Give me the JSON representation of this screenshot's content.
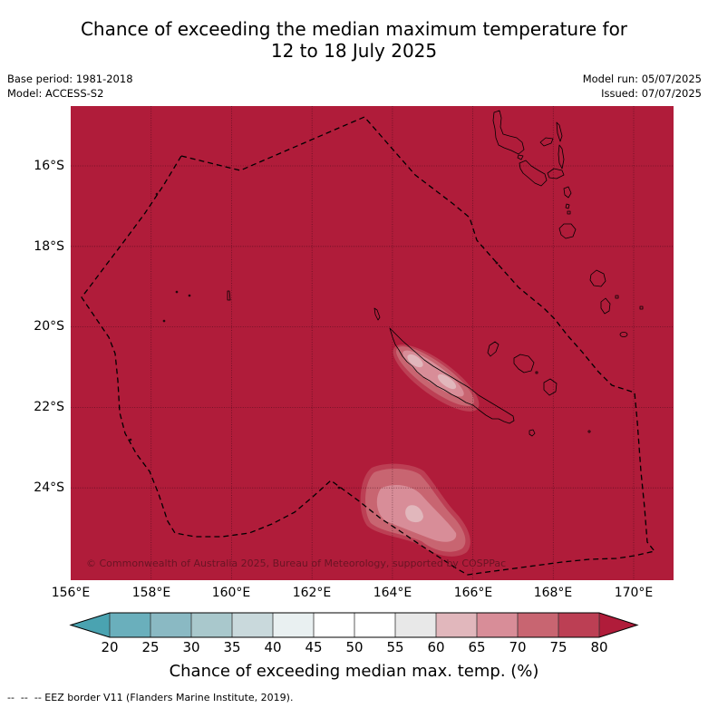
{
  "title": {
    "line1": "Chance of exceeding the median maximum temperature for",
    "line2": "12 to 18 July 2025"
  },
  "meta": {
    "base_period": "Base period: 1981-2018",
    "model": "Model: ACCESS-S2",
    "model_run": "Model run: 05/07/2025",
    "issued": "Issued: 07/07/2025"
  },
  "map": {
    "lat_labels": [
      "16°S",
      "18°S",
      "20°S",
      "22°S",
      "24°S"
    ],
    "lon_labels": [
      "156°E",
      "158°E",
      "160°E",
      "162°E",
      "164°E",
      "166°E",
      "168°E",
      "170°E"
    ],
    "copyright": "© Commonwealth of Australia 2025, Bureau of Meteorology, supported by COSPPac"
  },
  "colorbar": {
    "label": "Chance of exceeding median max. temp. (%)",
    "ticks": [
      20,
      25,
      30,
      35,
      40,
      45,
      50,
      55,
      60,
      65,
      70,
      75,
      80
    ],
    "colors": [
      "#4aa3b1",
      "#6aafbc",
      "#8ab9c3",
      "#a9c8cc",
      "#c9d9dc",
      "#e9f0f1",
      "#ffffff",
      "#ffffff",
      "#e8e8e8",
      "#e1b7bc",
      "#d88d98",
      "#c86571",
      "#bc3f54",
      "#b01c3a"
    ]
  },
  "footer": {
    "eez_legend": "--  --  -- EEZ border V11 (Flanders Marine Institute, 2019)."
  }
}
